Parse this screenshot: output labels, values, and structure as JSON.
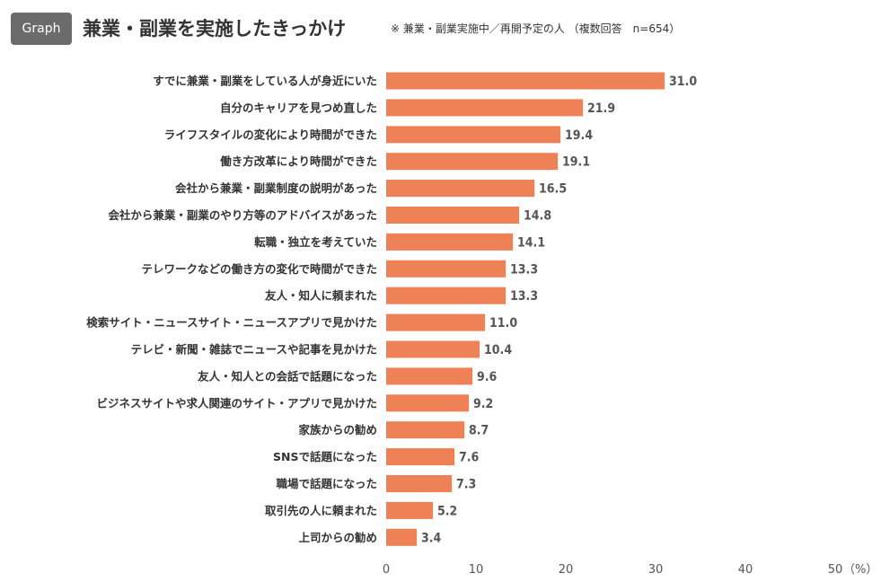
{
  "header": {
    "badge": "Graph",
    "title": "兼業・副業を実施したきっかけ",
    "note": "※ 兼業・副業実施中／再開予定の人 （複数回答　n=654）"
  },
  "chart_data": {
    "type": "bar",
    "orientation": "horizontal",
    "title": "兼業・副業を実施したきっかけ",
    "categories": [
      "すでに兼業・副業をしている人が身近にいた",
      "自分のキャリアを見つめ直した",
      "ライフスタイルの変化により時間ができた",
      "働き方改革により時間ができた",
      "会社から兼業・副業制度の説明があった",
      "会社から兼業・副業のやり方等のアドバイスがあった",
      "転職・独立を考えていた",
      "テレワークなどの働き方の変化で時間ができた",
      "友人・知人に頼まれた",
      "検索サイト・ニュースサイト・ニュースアプリで見かけた",
      "テレビ・新聞・雑誌でニュースや記事を見かけた",
      "友人・知人との会話で話題になった",
      "ビジネスサイトや求人関連のサイト・アプリで見かけた",
      "家族からの勧め",
      "SNSで話題になった",
      "職場で話題になった",
      "取引先の人に頼まれた",
      "上司からの勧め"
    ],
    "values": [
      31.0,
      21.9,
      19.4,
      19.1,
      16.5,
      14.8,
      14.1,
      13.3,
      13.3,
      11.0,
      10.4,
      9.6,
      9.2,
      8.7,
      7.6,
      7.3,
      5.2,
      3.4
    ],
    "value_labels": [
      "31.0",
      "21.9",
      "19.4",
      "19.1",
      "16.5",
      "14.8",
      "14.1",
      "13.3",
      "13.3",
      "11.0",
      "10.4",
      "9.6",
      "9.2",
      "8.7",
      "7.6",
      "7.3",
      "5.2",
      "3.4"
    ],
    "xlim": [
      0,
      50
    ],
    "x_ticks": [
      "0",
      "10",
      "20",
      "30",
      "40",
      "50"
    ],
    "x_unit": "（%）",
    "bar_color": "#ef8157",
    "grid": false
  }
}
